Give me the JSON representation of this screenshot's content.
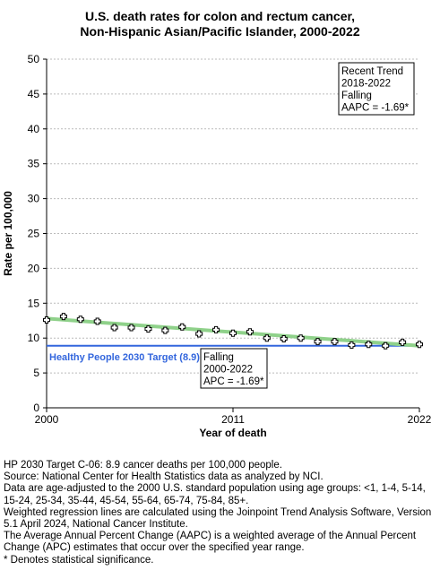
{
  "title_line1": "U.S. death rates for colon and rectum cancer,",
  "title_line2": "Non-Hispanic Asian/Pacific Islander,  2000-2022",
  "chart_data": {
    "type": "scatter",
    "xlabel": "Year of death",
    "ylabel": "Rate per 100,000",
    "xlim": [
      2000,
      2022
    ],
    "ylim": [
      0,
      50
    ],
    "x_ticks": [
      2000,
      2011,
      2022
    ],
    "y_ticks": [
      0,
      5,
      10,
      15,
      20,
      25,
      30,
      35,
      40,
      45,
      50
    ],
    "grid": "horizontal dashed",
    "observed": {
      "x": [
        2000,
        2001,
        2002,
        2003,
        2004,
        2005,
        2006,
        2007,
        2008,
        2009,
        2010,
        2011,
        2012,
        2013,
        2014,
        2015,
        2016,
        2017,
        2018,
        2019,
        2020,
        2021,
        2022
      ],
      "y": [
        12.6,
        13.1,
        12.7,
        12.4,
        11.5,
        11.5,
        11.3,
        11.1,
        11.6,
        10.6,
        11.2,
        10.7,
        10.9,
        10.0,
        9.9,
        10.0,
        9.5,
        9.5,
        9.0,
        9.1,
        8.9,
        9.4,
        9.1
      ]
    },
    "trend": {
      "x": [
        2000,
        2022
      ],
      "y": [
        12.8,
        8.9
      ],
      "color": "#8fd18a"
    },
    "target": {
      "value": 8.9,
      "label": "Healthy People 2030 Target (8.9)",
      "color": "#3366dd"
    },
    "annotations": [
      {
        "lines": [
          "Recent Trend",
          "2018-2022",
          "Falling",
          "AAPC = -1.69*"
        ]
      },
      {
        "lines": [
          "Falling",
          "2000-2022",
          "APC = -1.69*"
        ]
      }
    ]
  },
  "footnotes": [
    "HP 2030 Target C-06: 8.9 cancer deaths per 100,000 people.",
    "Source: National Center for Health Statistics data as analyzed by NCI.",
    "Data are age-adjusted to the 2000 U.S. standard population using age groups: <1, 1-4, 5-14, 15-24, 25-34, 35-44, 45-54, 55-64, 65-74, 75-84, 85+.",
    "Weighted regression lines are calculated using the Joinpoint Trend Analysis Software, Version 5.1 April 2024, National Cancer Institute.",
    "The Average Annual Percent Change (AAPC) is a weighted average of the Annual Percent Change (APC) estimates that occur over the specified year range.",
    "* Denotes statistical significance."
  ]
}
